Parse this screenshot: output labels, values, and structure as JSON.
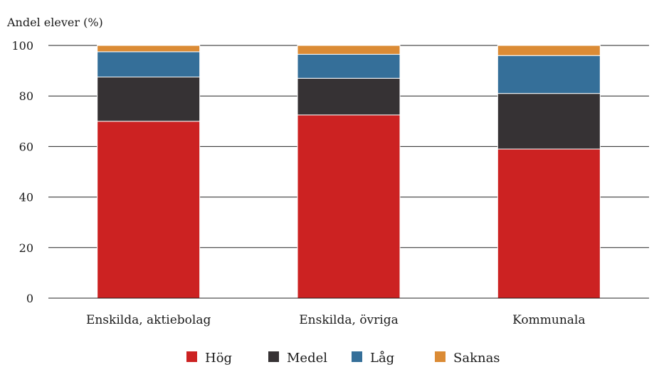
{
  "chart_data": {
    "type": "bar",
    "stacked": true,
    "ylabel": "Andel elever (%)",
    "xlabel": "",
    "ylim": [
      0,
      100
    ],
    "yticks": [
      0,
      20,
      40,
      60,
      80,
      100
    ],
    "categories": [
      "Enskilda, aktiebolag",
      "Enskilda, övriga",
      "Kommunala"
    ],
    "series": [
      {
        "name": "Hög",
        "color": "#cc2222",
        "values": [
          70,
          72.5,
          59
        ]
      },
      {
        "name": "Medel",
        "color": "#363234",
        "values": [
          17.5,
          14.5,
          22
        ]
      },
      {
        "name": "Låg",
        "color": "#356f99",
        "values": [
          10,
          9.5,
          15
        ]
      },
      {
        "name": "Saknas",
        "color": "#db8b35",
        "values": [
          2.5,
          3.5,
          4
        ]
      }
    ],
    "grid": "horizontal",
    "legend_position": "bottom-center"
  }
}
